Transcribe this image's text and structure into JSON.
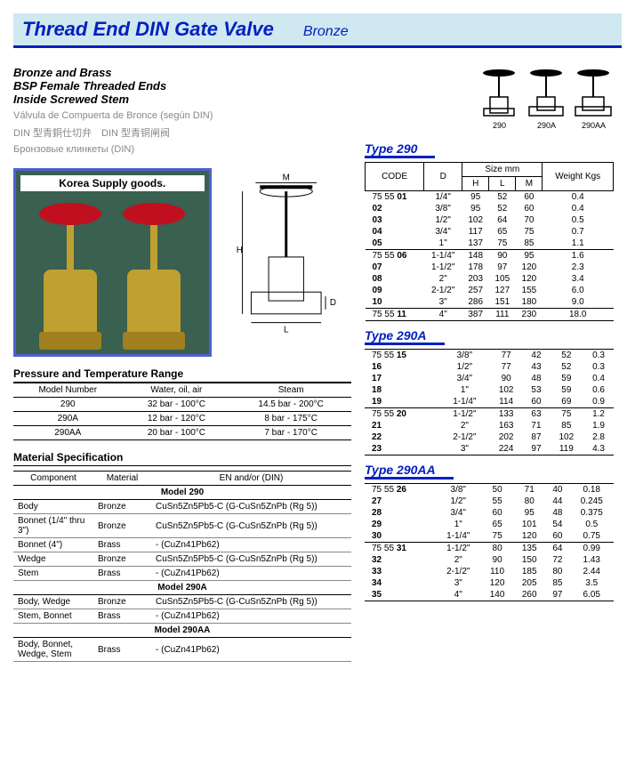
{
  "title": {
    "main": "Thread End DIN Gate Valve",
    "sub": "Bronze"
  },
  "desc": {
    "bold": [
      "Bronze and Brass",
      "BSP Female Threaded Ends",
      "Inside Screwed Stem"
    ],
    "light": [
      "Válvula de Compuerta de Bronce (según DIN)",
      "DIN 型青銅仕切弁　DIN 型青铜闸阀",
      "Бронзовые клинкеты (DIN)"
    ]
  },
  "product_caption": "Korea Supply goods.",
  "icon_labels": [
    "290",
    "290A",
    "290AA"
  ],
  "pressure": {
    "header": "Pressure and Temperature Range",
    "cols": [
      "Model Number",
      "Water, oil, air",
      "Steam"
    ],
    "rows": [
      [
        "290",
        "32 bar - 100°C",
        "14.5 bar - 200°C"
      ],
      [
        "290A",
        "12 bar - 120°C",
        "8 bar - 175°C"
      ],
      [
        "290AA",
        "20 bar - 100°C",
        "7 bar - 170°C"
      ]
    ]
  },
  "material": {
    "header": "Material Specification",
    "cols": [
      "Component",
      "Material",
      "EN and/or (DIN)"
    ],
    "groups": [
      {
        "model": "Model 290",
        "rows": [
          [
            "Body",
            "Bronze",
            "CuSn5Zn5Pb5-C (G-CuSn5ZnPb (Rg 5))"
          ],
          [
            "Bonnet (1/4\" thru 3\")",
            "Bronze",
            "CuSn5Zn5Pb5-C (G-CuSn5ZnPb (Rg 5))"
          ],
          [
            "Bonnet (4\")",
            "Brass",
            "- (CuZn41Pb62)"
          ],
          [
            "Wedge",
            "Bronze",
            "CuSn5Zn5Pb5-C (G-CuSn5ZnPb (Rg 5))"
          ],
          [
            "Stem",
            "Brass",
            "- (CuZn41Pb62)"
          ]
        ]
      },
      {
        "model": "Model 290A",
        "rows": [
          [
            "Body, Wedge",
            "Bronze",
            "CuSn5Zn5Pb5-C (G-CuSn5ZnPb (Rg 5))"
          ],
          [
            "Stem, Bonnet",
            "Brass",
            "- (CuZn41Pb62)"
          ]
        ]
      },
      {
        "model": "Model 290AA",
        "rows": [
          [
            "Body, Bonnet, Wedge, Stem",
            "Brass",
            "- (CuZn41Pb62)"
          ]
        ]
      }
    ]
  },
  "types": [
    {
      "name": "Type 290",
      "has_m": true,
      "head": [
        "CODE",
        "D",
        "H",
        "L",
        "M",
        "Weight Kgs"
      ],
      "groups": [
        [
          [
            "75 55 01",
            "1/4\"",
            "95",
            "52",
            "60",
            "0.4"
          ],
          [
            "02",
            "3/8\"",
            "95",
            "52",
            "60",
            "0.4"
          ],
          [
            "03",
            "1/2\"",
            "102",
            "64",
            "70",
            "0.5"
          ],
          [
            "04",
            "3/4\"",
            "117",
            "65",
            "75",
            "0.7"
          ],
          [
            "05",
            "1\"",
            "137",
            "75",
            "85",
            "1.1"
          ]
        ],
        [
          [
            "75 55 06",
            "1-1/4\"",
            "148",
            "90",
            "95",
            "1.6"
          ],
          [
            "07",
            "1-1/2\"",
            "178",
            "97",
            "120",
            "2.3"
          ],
          [
            "08",
            "2\"",
            "203",
            "105",
            "120",
            "3.4"
          ],
          [
            "09",
            "2-1/2\"",
            "257",
            "127",
            "155",
            "6.0"
          ],
          [
            "10",
            "3\"",
            "286",
            "151",
            "180",
            "9.0"
          ]
        ],
        [
          [
            "75 55 11",
            "4\"",
            "387",
            "111",
            "230",
            "18.0"
          ]
        ]
      ]
    },
    {
      "name": "Type 290A",
      "has_m": false,
      "head": [
        "",
        "",
        "",
        "",
        "",
        ""
      ],
      "groups": [
        [
          [
            "75 55 15",
            "3/8\"",
            "77",
            "42",
            "52",
            "0.3"
          ],
          [
            "16",
            "1/2\"",
            "77",
            "43",
            "52",
            "0.3"
          ],
          [
            "17",
            "3/4\"",
            "90",
            "48",
            "59",
            "0.4"
          ],
          [
            "18",
            "1\"",
            "102",
            "53",
            "59",
            "0.6"
          ],
          [
            "19",
            "1-1/4\"",
            "114",
            "60",
            "69",
            "0.9"
          ]
        ],
        [
          [
            "75 55 20",
            "1-1/2\"",
            "133",
            "63",
            "75",
            "1.2"
          ],
          [
            "21",
            "2\"",
            "163",
            "71",
            "85",
            "1.9"
          ],
          [
            "22",
            "2-1/2\"",
            "202",
            "87",
            "102",
            "2.8"
          ],
          [
            "23",
            "3\"",
            "224",
            "97",
            "119",
            "4.3"
          ]
        ]
      ]
    },
    {
      "name": "Type 290AA",
      "has_m": false,
      "head": [
        "",
        "",
        "",
        "",
        "",
        ""
      ],
      "groups": [
        [
          [
            "75 55 26",
            "3/8\"",
            "50",
            "71",
            "40",
            "0.18"
          ],
          [
            "27",
            "1/2\"",
            "55",
            "80",
            "44",
            "0.245"
          ],
          [
            "28",
            "3/4\"",
            "60",
            "95",
            "48",
            "0.375"
          ],
          [
            "29",
            "1\"",
            "65",
            "101",
            "54",
            "0.5"
          ],
          [
            "30",
            "1-1/4\"",
            "75",
            "120",
            "60",
            "0.75"
          ]
        ],
        [
          [
            "75 55 31",
            "1-1/2\"",
            "80",
            "135",
            "64",
            "0.99"
          ],
          [
            "32",
            "2\"",
            "90",
            "150",
            "72",
            "1.43"
          ],
          [
            "33",
            "2-1/2\"",
            "110",
            "185",
            "80",
            "2.44"
          ],
          [
            "34",
            "3\"",
            "120",
            "205",
            "85",
            "3.5"
          ],
          [
            "35",
            "4\"",
            "140",
            "260",
            "97",
            "6.05"
          ]
        ]
      ]
    }
  ]
}
